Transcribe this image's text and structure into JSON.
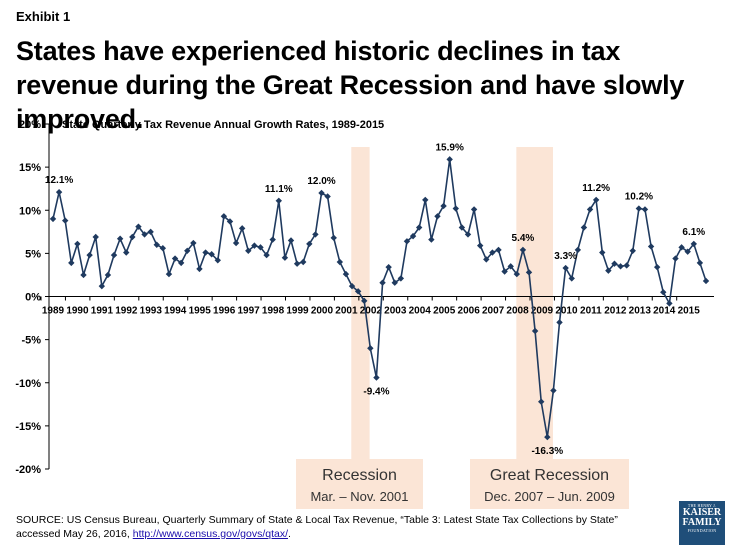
{
  "exhibit_label": "Exhibit 1",
  "headline": "States have experienced historic declines in tax revenue during the Great Recession and have slowly improved.",
  "chart_data": {
    "type": "line",
    "title": "State Quarterly Tax Revenue Annual Growth Rates, 1989-2015",
    "ylim": [
      -20,
      20
    ],
    "y_ticks": [
      -20,
      -15,
      -10,
      -5,
      0,
      5,
      10,
      15,
      20
    ],
    "y_tick_labels": [
      "-20%",
      "-15%",
      "-10%",
      "-5%",
      "0%",
      "5%",
      "10%",
      "15%",
      "20%"
    ],
    "x_tick_labels": [
      "1989",
      "1990",
      "1991",
      "1992",
      "1993",
      "1994",
      "1995",
      "1996",
      "1997",
      "1998",
      "1999",
      "2000",
      "2001",
      "2002",
      "2003",
      "2004",
      "2005",
      "2006",
      "2007",
      "2008",
      "2009",
      "2010",
      "2011",
      "2012",
      "2013",
      "2014",
      "2015"
    ],
    "series": [
      {
        "name": "Annual growth rate",
        "color": "#1f3a5f",
        "values": [
          9.0,
          12.1,
          8.8,
          3.9,
          6.1,
          2.5,
          4.8,
          6.9,
          1.2,
          2.5,
          4.8,
          6.7,
          5.1,
          6.9,
          8.1,
          7.2,
          7.5,
          6.0,
          5.6,
          2.6,
          4.4,
          3.9,
          5.3,
          6.2,
          3.2,
          5.1,
          4.9,
          4.2,
          9.3,
          8.7,
          6.2,
          7.9,
          5.3,
          5.9,
          5.7,
          4.8,
          6.6,
          11.1,
          4.5,
          6.5,
          3.8,
          4.0,
          6.1,
          7.2,
          12.0,
          11.6,
          6.8,
          4.0,
          2.6,
          1.2,
          0.6,
          -0.5,
          -6.0,
          -9.4,
          1.6,
          3.4,
          1.6,
          2.1,
          6.4,
          7.0,
          8.0,
          11.2,
          6.6,
          9.3,
          10.5,
          15.9,
          10.2,
          8.0,
          7.2,
          10.1,
          5.9,
          4.3,
          5.1,
          5.4,
          2.9,
          3.5,
          2.6,
          5.4,
          2.8,
          -4.0,
          -12.2,
          -16.3,
          -10.9,
          -3.0,
          3.3,
          2.1,
          5.4,
          8.0,
          10.1,
          11.2,
          5.1,
          3.0,
          3.8,
          3.5,
          3.6,
          5.3,
          10.2,
          10.1,
          5.8,
          3.4,
          0.5,
          -0.8,
          4.4,
          5.7,
          5.2,
          6.1,
          3.9,
          1.8
        ]
      }
    ],
    "annotations": [
      {
        "index": 1,
        "label": "12.1%"
      },
      {
        "index": 37,
        "label": "11.1%"
      },
      {
        "index": 44,
        "label": "12.0%"
      },
      {
        "index": 53,
        "label": "-9.4%"
      },
      {
        "index": 65,
        "label": "15.9%"
      },
      {
        "index": 77,
        "label": "5.4%"
      },
      {
        "index": 81,
        "label": "-16.3%"
      },
      {
        "index": 84,
        "label": "3.3%"
      },
      {
        "index": 89,
        "label": "11.2%"
      },
      {
        "index": 96,
        "label": "10.2%"
      },
      {
        "index": 105,
        "label": "6.1%"
      }
    ],
    "shaded_regions": [
      {
        "start_year": 2001.2,
        "end_year": 2001.95,
        "name": "Recession",
        "dates": "Mar. – Nov. 2001",
        "color": "#fbe5d6"
      },
      {
        "start_year": 2007.95,
        "end_year": 2009.45,
        "name": "Great Recession",
        "dates": "Dec. 2007 – Jun. 2009",
        "color": "#fbe5d6"
      }
    ]
  },
  "source": {
    "text": "SOURCE: US Census Bureau, Quarterly Summary of State & Local Tax Revenue, “Table 3: Latest State Tax Collections by State” accessed May 26, 2016,",
    "link": "http://www.census.gov/govs/qtax/",
    "trailing": "."
  },
  "logo": {
    "line1": "THE HENRY J.",
    "line2": "KAISER",
    "line3": "FAMILY",
    "line4": "FOUNDATION"
  }
}
